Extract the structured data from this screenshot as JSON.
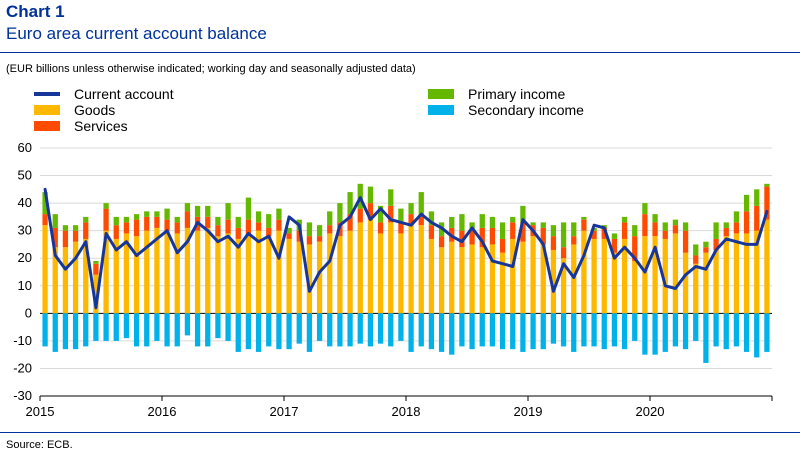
{
  "header": {
    "chart_label": "Chart 1",
    "title": "Euro area current account balance",
    "subtitle": "(EUR billions unless otherwise indicated; working day and seasonally adjusted data)"
  },
  "footer": {
    "source": "Source: ECB."
  },
  "colors": {
    "current_account": "#17369a",
    "goods": "#ffb800",
    "services": "#ff4b00",
    "primary_income": "#65b800",
    "secondary_income": "#00b1ea",
    "axis": "#000000",
    "grid": "#d9d9d9"
  },
  "chart_data": {
    "type": "bar",
    "stacked": true,
    "title": "Euro area current account balance",
    "ylim": [
      -30,
      60
    ],
    "yticks": [
      -30,
      -20,
      -10,
      0,
      10,
      20,
      30,
      40,
      50,
      60
    ],
    "x_labels": [
      "2015",
      "2016",
      "2017",
      "2018",
      "2019",
      "2020"
    ],
    "x_start_year": 2015,
    "months": 72,
    "grid": "horizontal",
    "legend_position": "top",
    "legend": [
      "Current account",
      "Goods",
      "Services",
      "Primary income",
      "Secondary income"
    ],
    "series": [
      {
        "name": "Goods",
        "kind": "bar",
        "values": [
          32,
          24,
          24,
          26,
          27,
          14,
          30,
          27,
          29,
          28,
          30,
          31,
          30,
          29,
          31,
          30,
          31,
          28,
          29,
          27,
          28,
          30,
          28,
          30,
          27,
          26,
          25,
          26,
          29,
          28,
          30,
          33,
          34,
          29,
          33,
          29,
          32,
          32,
          27,
          24,
          26,
          24,
          25,
          24,
          25,
          22,
          27,
          26,
          28,
          25,
          23,
          20,
          25,
          30,
          27,
          27,
          22,
          27,
          19,
          28,
          28,
          27,
          29,
          22,
          18,
          22,
          23,
          28,
          29,
          29,
          30,
          34
        ]
      },
      {
        "name": "Services",
        "kind": "bar",
        "values": [
          4,
          7,
          6,
          4,
          6,
          4,
          8,
          5,
          4,
          6,
          5,
          4,
          4,
          4,
          6,
          5,
          4,
          4,
          5,
          4,
          6,
          3,
          3,
          4,
          2,
          4,
          3,
          2,
          3,
          5,
          6,
          5,
          6,
          4,
          6,
          4,
          4,
          4,
          5,
          4,
          5,
          6,
          5,
          7,
          6,
          5,
          6,
          7,
          4,
          6,
          5,
          4,
          3,
          4,
          3,
          4,
          5,
          6,
          9,
          8,
          5,
          3,
          3,
          8,
          3,
          2,
          4,
          3,
          4,
          8,
          9,
          12
        ]
      },
      {
        "name": "Primary income",
        "kind": "bar",
        "values": [
          8,
          5,
          2,
          2,
          2,
          1,
          2,
          3,
          2,
          2,
          2,
          2,
          4,
          2,
          3,
          4,
          4,
          3,
          6,
          4,
          8,
          4,
          5,
          4,
          2,
          4,
          5,
          4,
          5,
          7,
          8,
          9,
          6,
          6,
          6,
          5,
          4,
          8,
          5,
          5,
          4,
          6,
          3,
          5,
          4,
          6,
          2,
          6,
          1,
          2,
          4,
          9,
          5,
          1,
          1,
          1,
          2,
          2,
          4,
          4,
          3,
          3,
          2,
          3,
          4,
          2,
          6,
          2,
          4,
          6,
          6,
          1
        ]
      },
      {
        "name": "Secondary income",
        "kind": "bar",
        "values": [
          -12,
          -14,
          -13,
          -13,
          -12,
          -10,
          -10,
          -10,
          -9,
          -12,
          -12,
          -10,
          -12,
          -12,
          -8,
          -12,
          -12,
          -9,
          -10,
          -14,
          -13,
          -14,
          -12,
          -13,
          -13,
          -11,
          -14,
          -10,
          -12,
          -12,
          -12,
          -11,
          -12,
          -11,
          -12,
          -10,
          -14,
          -12,
          -13,
          -14,
          -15,
          -12,
          -13,
          -12,
          -12,
          -13,
          -13,
          -14,
          -13,
          -13,
          -11,
          -12,
          -14,
          -12,
          -12,
          -13,
          -12,
          -13,
          -10,
          -15,
          -15,
          -14,
          -12,
          -13,
          -10,
          -18,
          -12,
          -13,
          -12,
          -14,
          -16,
          -14
        ]
      },
      {
        "name": "Current account",
        "kind": "line",
        "values": [
          45,
          21,
          16,
          20,
          26,
          2,
          29,
          23,
          26,
          21,
          24,
          27,
          30,
          22,
          26,
          33,
          30,
          26,
          28,
          24,
          29,
          26,
          28,
          20,
          35,
          32,
          8,
          15,
          19,
          32,
          35,
          42,
          34,
          38,
          34,
          33,
          32,
          36,
          33,
          31,
          28,
          26,
          31,
          26,
          19,
          18,
          17,
          34,
          30,
          25,
          8,
          18,
          13,
          21,
          32,
          31,
          20,
          24,
          20,
          15,
          24,
          10,
          9,
          14,
          17,
          16,
          23,
          27,
          26,
          25,
          25,
          37
        ]
      }
    ]
  }
}
